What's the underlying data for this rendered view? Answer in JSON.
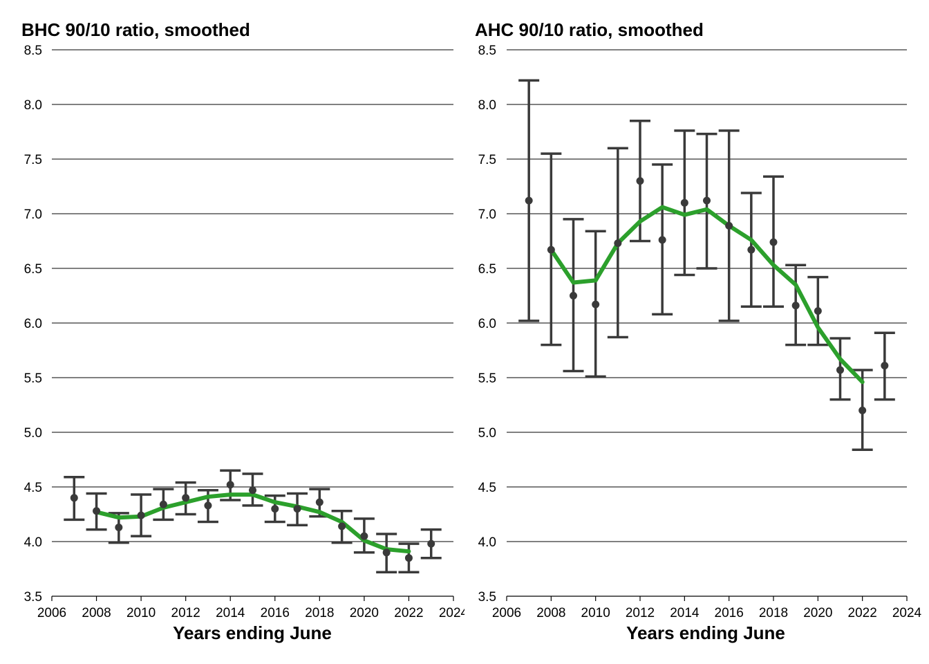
{
  "chart_data": [
    {
      "type": "line",
      "title": "BHC 90/10 ratio, smoothed",
      "xlabel": "Years ending June",
      "ylabel": "",
      "xlim": [
        2006,
        2024
      ],
      "ylim": [
        3.5,
        8.5
      ],
      "xticks": [
        2006,
        2008,
        2010,
        2012,
        2014,
        2016,
        2018,
        2020,
        2022,
        2024
      ],
      "yticks": [
        "3.5",
        "4.0",
        "4.5",
        "5.0",
        "5.5",
        "6.0",
        "6.5",
        "7.0",
        "7.5",
        "8.0",
        "8.5"
      ],
      "grid": "horizontal",
      "colors": {
        "smoothed_line": "#2ca02c",
        "points": "#3a3a3a",
        "error_bars": "#3a3a3a",
        "gridlines": "#000000"
      },
      "series": [
        {
          "type": "points_with_error_bars",
          "x": [
            2007,
            2008,
            2009,
            2010,
            2011,
            2012,
            2013,
            2014,
            2015,
            2016,
            2017,
            2018,
            2019,
            2020,
            2021,
            2022,
            2023
          ],
          "y": [
            4.4,
            4.28,
            4.13,
            4.24,
            4.34,
            4.4,
            4.33,
            4.52,
            4.47,
            4.3,
            4.3,
            4.36,
            4.14,
            4.05,
            3.9,
            3.85,
            3.98
          ],
          "lower": [
            4.2,
            4.11,
            3.99,
            4.05,
            4.2,
            4.25,
            4.18,
            4.38,
            4.33,
            4.18,
            4.15,
            4.23,
            3.99,
            3.9,
            3.72,
            3.72,
            3.85
          ],
          "upper": [
            4.59,
            4.44,
            4.26,
            4.43,
            4.48,
            4.54,
            4.47,
            4.65,
            4.62,
            4.42,
            4.44,
            4.48,
            4.28,
            4.21,
            4.07,
            3.98,
            4.11
          ]
        },
        {
          "type": "smoothed_line",
          "x": [
            2008,
            2009,
            2010,
            2011,
            2012,
            2013,
            2014,
            2015,
            2016,
            2017,
            2018,
            2019,
            2020,
            2021,
            2022
          ],
          "y": [
            4.27,
            4.22,
            4.23,
            4.31,
            4.36,
            4.41,
            4.43,
            4.43,
            4.36,
            4.32,
            4.27,
            4.18,
            4.01,
            3.93,
            3.91
          ]
        }
      ]
    },
    {
      "type": "line",
      "title": "AHC 90/10 ratio, smoothed",
      "xlabel": "Years ending June",
      "ylabel": "",
      "xlim": [
        2006,
        2024
      ],
      "ylim": [
        3.5,
        8.5
      ],
      "xticks": [
        2006,
        2008,
        2010,
        2012,
        2014,
        2016,
        2018,
        2020,
        2022,
        2024
      ],
      "yticks": [
        "3.5",
        "4.0",
        "4.5",
        "5.0",
        "5.5",
        "6.0",
        "6.5",
        "7.0",
        "7.5",
        "8.0",
        "8.5"
      ],
      "grid": "horizontal",
      "colors": {
        "smoothed_line": "#2ca02c",
        "points": "#3a3a3a",
        "error_bars": "#3a3a3a",
        "gridlines": "#000000"
      },
      "series": [
        {
          "type": "points_with_error_bars",
          "x": [
            2007,
            2008,
            2009,
            2010,
            2011,
            2012,
            2013,
            2014,
            2015,
            2016,
            2017,
            2018,
            2019,
            2020,
            2021,
            2022,
            2023
          ],
          "y": [
            7.12,
            6.67,
            6.25,
            6.17,
            6.73,
            7.3,
            6.76,
            7.1,
            7.12,
            6.89,
            6.67,
            6.74,
            6.16,
            6.11,
            5.57,
            5.2,
            5.61
          ],
          "lower": [
            6.02,
            5.8,
            5.56,
            5.51,
            5.87,
            6.75,
            6.08,
            6.44,
            6.5,
            6.02,
            6.15,
            6.15,
            5.8,
            5.8,
            5.3,
            4.84,
            5.3
          ],
          "upper": [
            8.22,
            7.55,
            6.95,
            6.84,
            7.6,
            7.85,
            7.45,
            7.76,
            7.73,
            7.76,
            7.19,
            7.34,
            6.53,
            6.42,
            5.86,
            5.57,
            5.91
          ]
        },
        {
          "type": "smoothed_line",
          "x": [
            2008,
            2009,
            2010,
            2011,
            2012,
            2013,
            2014,
            2015,
            2016,
            2017,
            2018,
            2019,
            2020,
            2021,
            2022
          ],
          "y": [
            6.67,
            6.37,
            6.39,
            6.73,
            6.93,
            7.06,
            6.99,
            7.04,
            6.89,
            6.76,
            6.53,
            6.35,
            5.96,
            5.67,
            5.46
          ]
        }
      ]
    }
  ]
}
